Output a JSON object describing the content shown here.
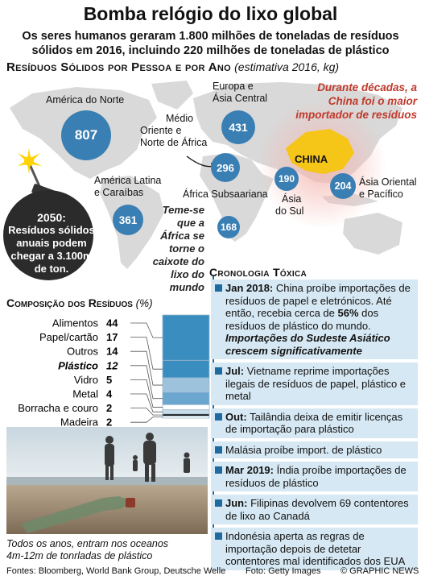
{
  "header": {
    "title": "Bomba relógio do lixo global",
    "subtitle_line1": "Os seres humanos geraram 1.800 milhões de toneladas de resíduos",
    "subtitle_line2": "sólidos em 2016, incluindo 220 milhões de toneladas de plástico"
  },
  "map_section": {
    "heading": "Resíduos Sólidos por Pessoa e por Ano",
    "note": "(estimativa 2016, kg)",
    "regions": [
      {
        "name_lines": [
          "América do Norte"
        ],
        "value": "807"
      },
      {
        "name_lines": [
          "Europa e",
          "Ásia Central"
        ],
        "value": "431"
      },
      {
        "name_lines": [
          "Médio",
          "Oriente e",
          "Norte de África"
        ],
        "value": "296"
      },
      {
        "name_lines": [
          "América Latina",
          "e Caraíbas"
        ],
        "value": "361"
      },
      {
        "name_lines": [
          "África Subsaariana"
        ],
        "value": "168"
      },
      {
        "name_lines": [
          "Ásia",
          "do Sul"
        ],
        "value": "190"
      },
      {
        "name_lines": [
          "Ásia Oriental",
          "e Pacífico"
        ],
        "value": "204"
      }
    ],
    "china_label": "CHINA",
    "china_note": [
      "Durante décadas, a",
      "China foi o maior",
      "importador de resíduos"
    ],
    "africa_note": [
      "Teme-se",
      "que a",
      "África se",
      "torne o",
      "caixote do",
      "lixo do mundo"
    ],
    "bomb_lines": [
      "2050:",
      "Resíduos sólidos",
      "anuais podem",
      "chegar a 3.100m",
      "de ton."
    ]
  },
  "chart_data": {
    "type": "bar",
    "title": "Composição dos Resíduos",
    "unit_note": "(%)",
    "categories": [
      "Alimentos",
      "Papel/cartão",
      "Outros",
      "Plástico",
      "Vidro",
      "Metal",
      "Borracha e couro",
      "Madeira"
    ],
    "values": [
      44,
      17,
      14,
      12,
      5,
      4,
      2,
      2
    ],
    "colors": [
      "#3a8dbf",
      "#3a8dbf",
      "#9dc3dc",
      "#6aa6cf",
      "#ffffff",
      "#c9dcea",
      "#111111",
      "#ffffff"
    ]
  },
  "timeline": {
    "heading": "Cronologia Tóxica",
    "items": [
      {
        "date": "Jan 2018:",
        "text": " China proíbe importações de resíduos de papel e eletrónicos. Até então, recebia cerca de ",
        "bold2": "56%",
        "text2": " dos resíduos de plástico do mundo. ",
        "emph": "Importações do Sudeste Asiático crescem significativamente"
      },
      {
        "date": "Jul:",
        "text": " Vietname reprime importações ilegais de resíduos de papel, plástico e metal"
      },
      {
        "date": "Out:",
        "text": " Tailândia deixa de emitir licenças de importação para plástico"
      },
      {
        "date": "",
        "text": "Malásia proíbe import. de plástico"
      },
      {
        "date": "Mar 2019:",
        "text": " Índia proíbe importações de resíduos de plástico"
      },
      {
        "date": "Jun:",
        "text": " Filipinas devolvem 69 contentores de lixo ao Canadá"
      },
      {
        "date": "",
        "text": "Indonésia aperta as regras de importação depois de detetar contentores mal identificados dos EUA"
      }
    ]
  },
  "photo": {
    "caption_line1": "Todos os anos, entram nos oceanos",
    "caption_line2": "4m-12m de tonrladas de plástico"
  },
  "footer": {
    "sources": "Fontes: Bloomberg, World Bank Group, Deutsche Welle",
    "photo_credit": "Foto: Getty Images",
    "credit": "© GRAPHIC NEWS"
  }
}
